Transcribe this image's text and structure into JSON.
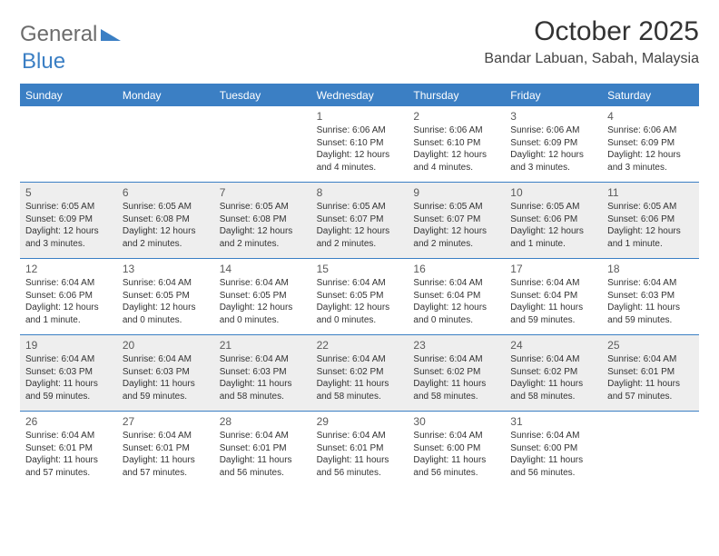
{
  "logo": {
    "word1": "General",
    "word2": "Blue"
  },
  "title": "October 2025",
  "location": "Bandar Labuan, Sabah, Malaysia",
  "colors": {
    "brand_blue": "#3b7fc4",
    "shade_bg": "#eeeeee",
    "text": "#333333",
    "logo_gray": "#6c6c6c"
  },
  "dow": [
    "Sunday",
    "Monday",
    "Tuesday",
    "Wednesday",
    "Thursday",
    "Friday",
    "Saturday"
  ],
  "weeks": [
    [
      {
        "n": "",
        "sr": "",
        "ss": "",
        "dl": ""
      },
      {
        "n": "",
        "sr": "",
        "ss": "",
        "dl": ""
      },
      {
        "n": "",
        "sr": "",
        "ss": "",
        "dl": ""
      },
      {
        "n": "1",
        "sr": "Sunrise: 6:06 AM",
        "ss": "Sunset: 6:10 PM",
        "dl": "Daylight: 12 hours and 4 minutes."
      },
      {
        "n": "2",
        "sr": "Sunrise: 6:06 AM",
        "ss": "Sunset: 6:10 PM",
        "dl": "Daylight: 12 hours and 4 minutes."
      },
      {
        "n": "3",
        "sr": "Sunrise: 6:06 AM",
        "ss": "Sunset: 6:09 PM",
        "dl": "Daylight: 12 hours and 3 minutes."
      },
      {
        "n": "4",
        "sr": "Sunrise: 6:06 AM",
        "ss": "Sunset: 6:09 PM",
        "dl": "Daylight: 12 hours and 3 minutes."
      }
    ],
    [
      {
        "n": "5",
        "sr": "Sunrise: 6:05 AM",
        "ss": "Sunset: 6:09 PM",
        "dl": "Daylight: 12 hours and 3 minutes."
      },
      {
        "n": "6",
        "sr": "Sunrise: 6:05 AM",
        "ss": "Sunset: 6:08 PM",
        "dl": "Daylight: 12 hours and 2 minutes."
      },
      {
        "n": "7",
        "sr": "Sunrise: 6:05 AM",
        "ss": "Sunset: 6:08 PM",
        "dl": "Daylight: 12 hours and 2 minutes."
      },
      {
        "n": "8",
        "sr": "Sunrise: 6:05 AM",
        "ss": "Sunset: 6:07 PM",
        "dl": "Daylight: 12 hours and 2 minutes."
      },
      {
        "n": "9",
        "sr": "Sunrise: 6:05 AM",
        "ss": "Sunset: 6:07 PM",
        "dl": "Daylight: 12 hours and 2 minutes."
      },
      {
        "n": "10",
        "sr": "Sunrise: 6:05 AM",
        "ss": "Sunset: 6:06 PM",
        "dl": "Daylight: 12 hours and 1 minute."
      },
      {
        "n": "11",
        "sr": "Sunrise: 6:05 AM",
        "ss": "Sunset: 6:06 PM",
        "dl": "Daylight: 12 hours and 1 minute."
      }
    ],
    [
      {
        "n": "12",
        "sr": "Sunrise: 6:04 AM",
        "ss": "Sunset: 6:06 PM",
        "dl": "Daylight: 12 hours and 1 minute."
      },
      {
        "n": "13",
        "sr": "Sunrise: 6:04 AM",
        "ss": "Sunset: 6:05 PM",
        "dl": "Daylight: 12 hours and 0 minutes."
      },
      {
        "n": "14",
        "sr": "Sunrise: 6:04 AM",
        "ss": "Sunset: 6:05 PM",
        "dl": "Daylight: 12 hours and 0 minutes."
      },
      {
        "n": "15",
        "sr": "Sunrise: 6:04 AM",
        "ss": "Sunset: 6:05 PM",
        "dl": "Daylight: 12 hours and 0 minutes."
      },
      {
        "n": "16",
        "sr": "Sunrise: 6:04 AM",
        "ss": "Sunset: 6:04 PM",
        "dl": "Daylight: 12 hours and 0 minutes."
      },
      {
        "n": "17",
        "sr": "Sunrise: 6:04 AM",
        "ss": "Sunset: 6:04 PM",
        "dl": "Daylight: 11 hours and 59 minutes."
      },
      {
        "n": "18",
        "sr": "Sunrise: 6:04 AM",
        "ss": "Sunset: 6:03 PM",
        "dl": "Daylight: 11 hours and 59 minutes."
      }
    ],
    [
      {
        "n": "19",
        "sr": "Sunrise: 6:04 AM",
        "ss": "Sunset: 6:03 PM",
        "dl": "Daylight: 11 hours and 59 minutes."
      },
      {
        "n": "20",
        "sr": "Sunrise: 6:04 AM",
        "ss": "Sunset: 6:03 PM",
        "dl": "Daylight: 11 hours and 59 minutes."
      },
      {
        "n": "21",
        "sr": "Sunrise: 6:04 AM",
        "ss": "Sunset: 6:03 PM",
        "dl": "Daylight: 11 hours and 58 minutes."
      },
      {
        "n": "22",
        "sr": "Sunrise: 6:04 AM",
        "ss": "Sunset: 6:02 PM",
        "dl": "Daylight: 11 hours and 58 minutes."
      },
      {
        "n": "23",
        "sr": "Sunrise: 6:04 AM",
        "ss": "Sunset: 6:02 PM",
        "dl": "Daylight: 11 hours and 58 minutes."
      },
      {
        "n": "24",
        "sr": "Sunrise: 6:04 AM",
        "ss": "Sunset: 6:02 PM",
        "dl": "Daylight: 11 hours and 58 minutes."
      },
      {
        "n": "25",
        "sr": "Sunrise: 6:04 AM",
        "ss": "Sunset: 6:01 PM",
        "dl": "Daylight: 11 hours and 57 minutes."
      }
    ],
    [
      {
        "n": "26",
        "sr": "Sunrise: 6:04 AM",
        "ss": "Sunset: 6:01 PM",
        "dl": "Daylight: 11 hours and 57 minutes."
      },
      {
        "n": "27",
        "sr": "Sunrise: 6:04 AM",
        "ss": "Sunset: 6:01 PM",
        "dl": "Daylight: 11 hours and 57 minutes."
      },
      {
        "n": "28",
        "sr": "Sunrise: 6:04 AM",
        "ss": "Sunset: 6:01 PM",
        "dl": "Daylight: 11 hours and 56 minutes."
      },
      {
        "n": "29",
        "sr": "Sunrise: 6:04 AM",
        "ss": "Sunset: 6:01 PM",
        "dl": "Daylight: 11 hours and 56 minutes."
      },
      {
        "n": "30",
        "sr": "Sunrise: 6:04 AM",
        "ss": "Sunset: 6:00 PM",
        "dl": "Daylight: 11 hours and 56 minutes."
      },
      {
        "n": "31",
        "sr": "Sunrise: 6:04 AM",
        "ss": "Sunset: 6:00 PM",
        "dl": "Daylight: 11 hours and 56 minutes."
      },
      {
        "n": "",
        "sr": "",
        "ss": "",
        "dl": ""
      }
    ]
  ]
}
